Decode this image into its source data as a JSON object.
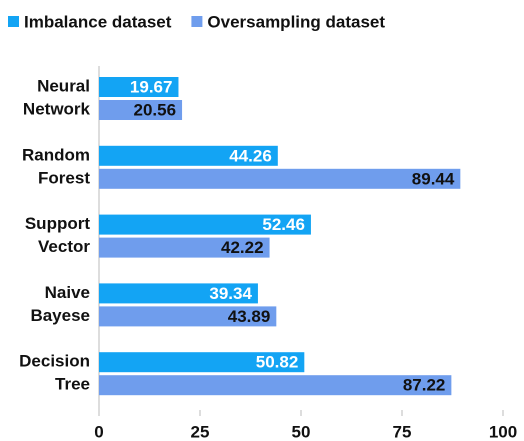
{
  "chart_data": {
    "type": "bar",
    "orientation": "horizontal",
    "categories": [
      [
        "Neural",
        "Network"
      ],
      [
        "Random",
        "Forest"
      ],
      [
        "Support",
        "Vector"
      ],
      [
        "Naive",
        "Bayese"
      ],
      [
        "Decision",
        "Tree"
      ]
    ],
    "series": [
      {
        "name": "Imbalance dataset",
        "color": "#13a4f4",
        "values": [
          19.67,
          44.26,
          52.46,
          39.34,
          50.82
        ]
      },
      {
        "name": "Oversampling dataset",
        "color": "#6f9ded",
        "values": [
          20.56,
          89.44,
          42.22,
          43.89,
          87.22
        ]
      }
    ],
    "xlim": [
      0,
      100
    ],
    "xticks": [
      0,
      25,
      50,
      75,
      100
    ],
    "legend": "top-left"
  }
}
